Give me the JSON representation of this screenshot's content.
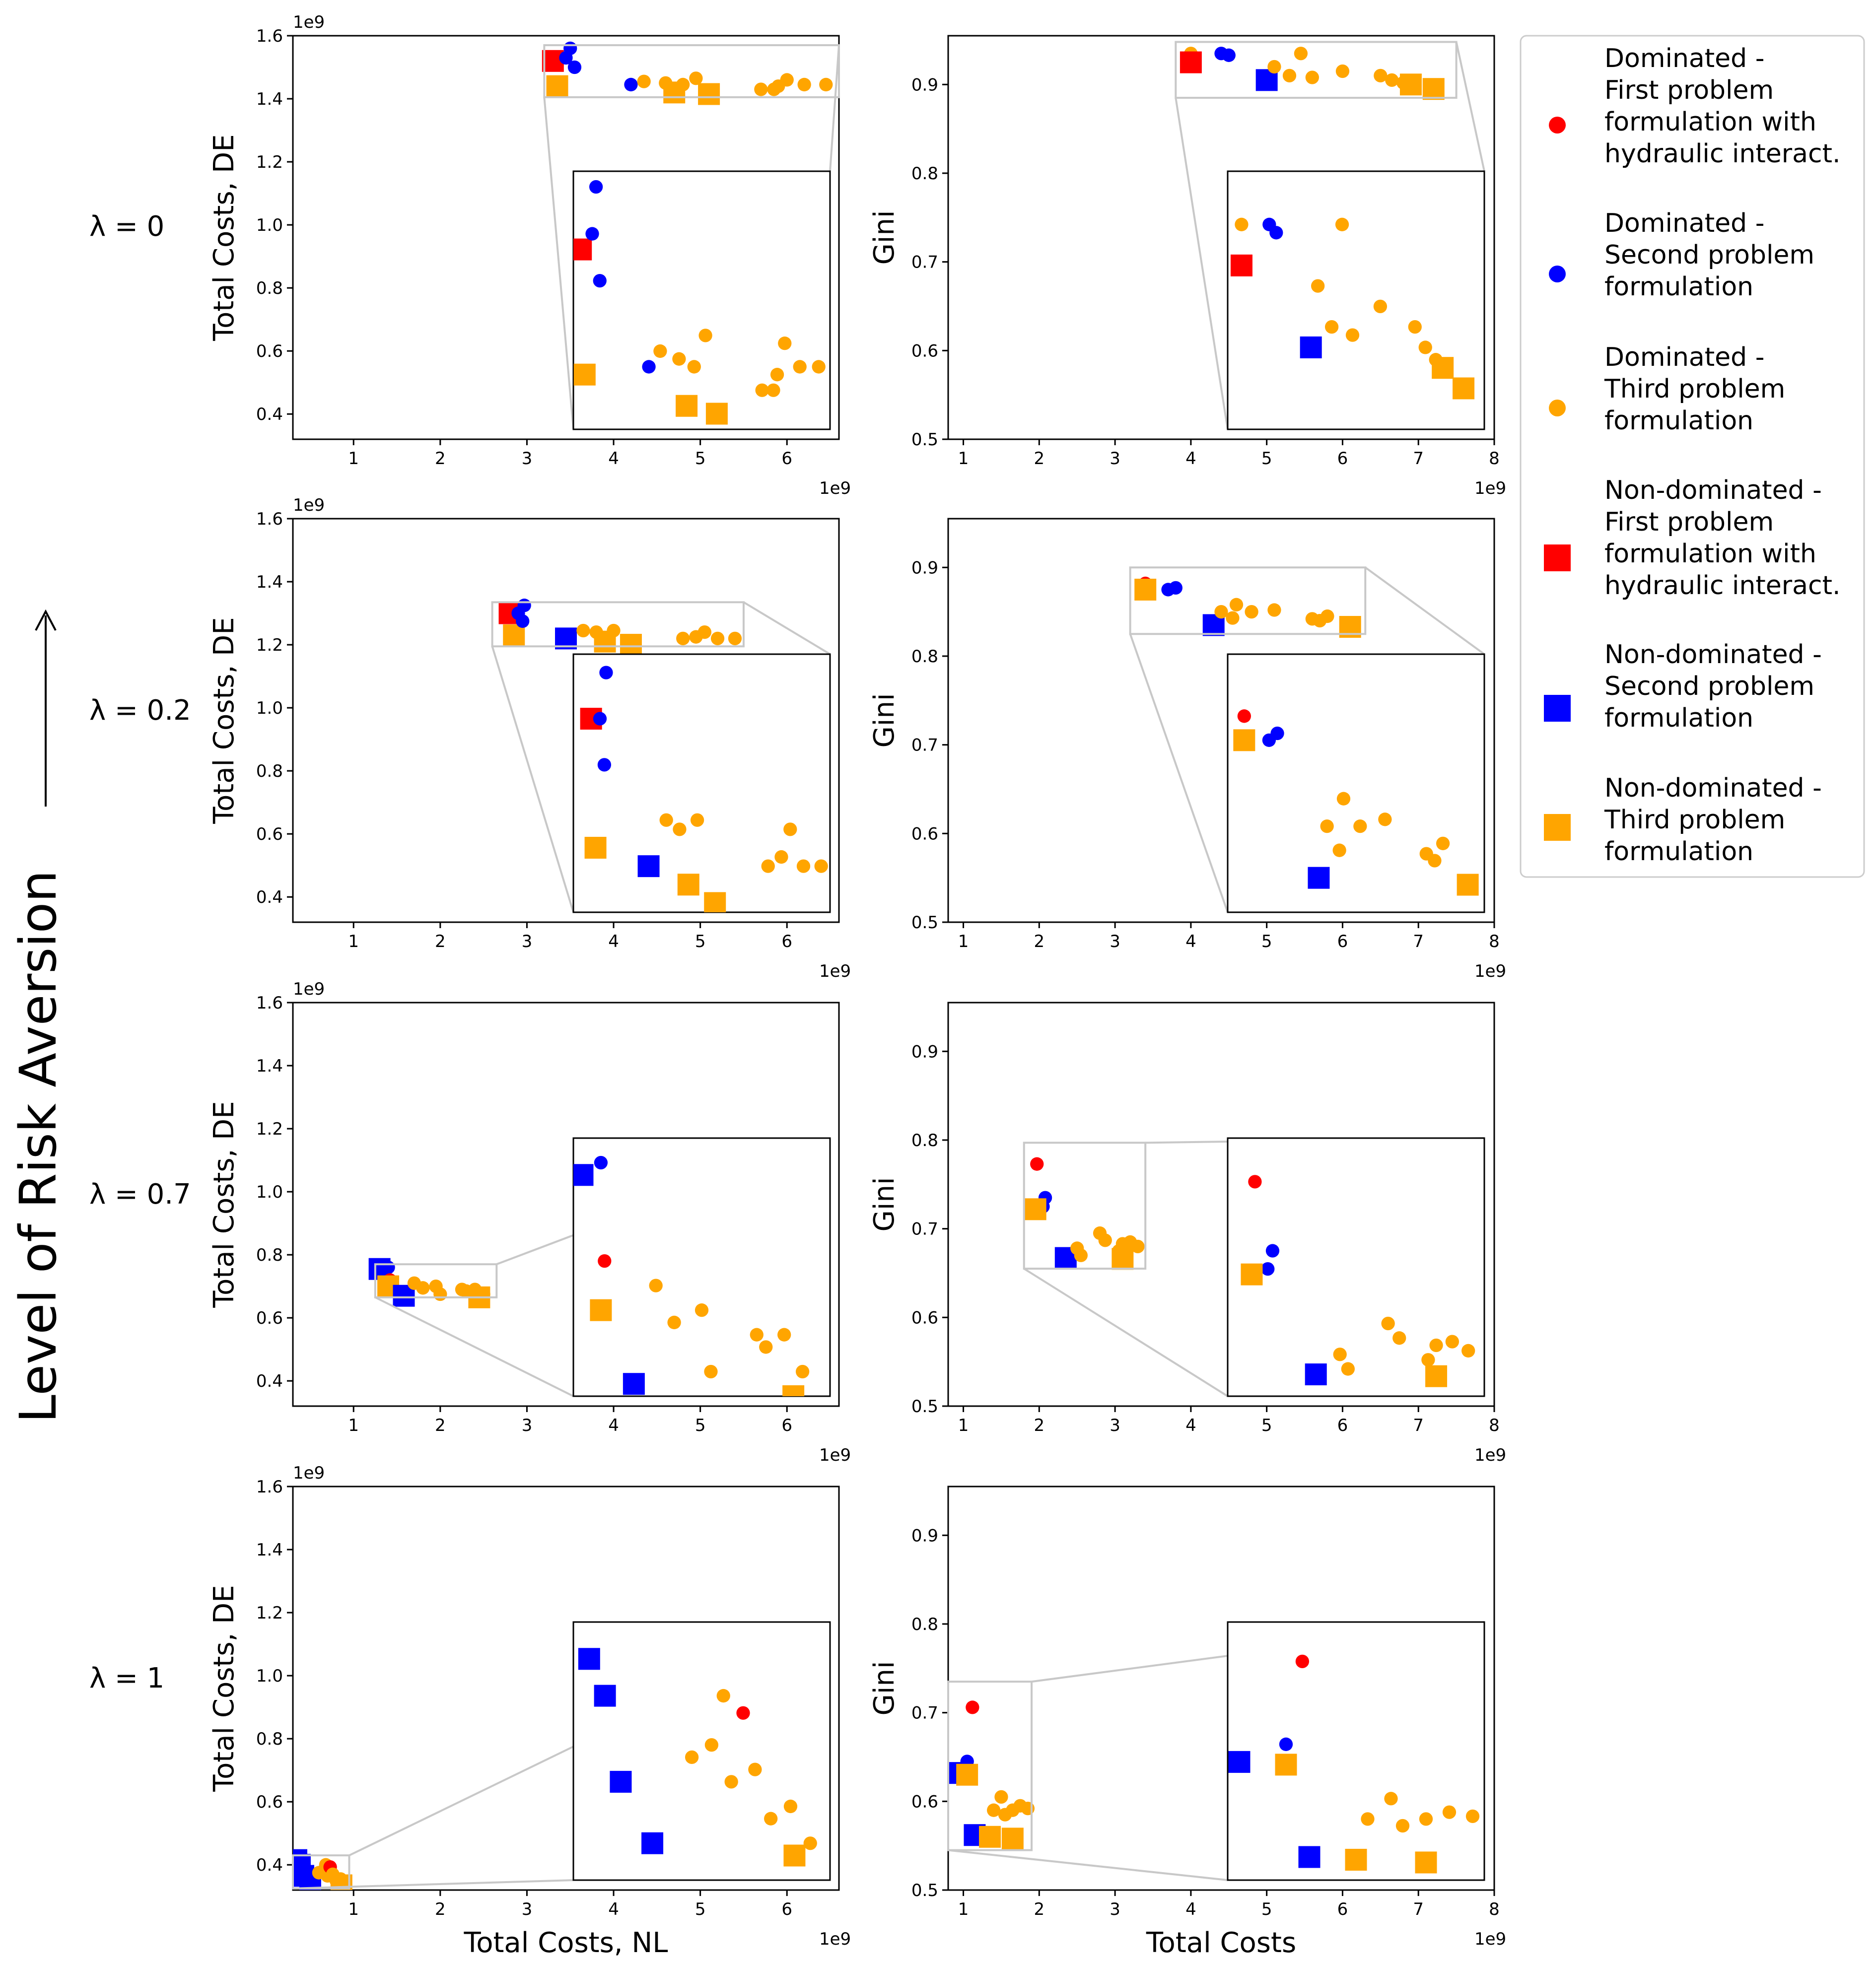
{
  "figure": {
    "row_axis_label": "Level of Risk Aversion",
    "row_labels": [
      "λ = 0",
      "λ = 0.2",
      "λ = 0.7",
      "λ = 1"
    ],
    "left_xlabel": "Total Costs, NL",
    "left_ylabel": "Total Costs, DE",
    "right_xlabel": "Total Costs",
    "right_ylabel": "Gini",
    "offset_label": "1e9",
    "left_xticks": [
      "1",
      "2",
      "3",
      "4",
      "5",
      "6"
    ],
    "left_yticks": [
      "0.4",
      "0.6",
      "0.8",
      "1.0",
      "1.2",
      "1.4",
      "1.6"
    ],
    "right_xticks": [
      "1",
      "2",
      "3",
      "4",
      "5",
      "6",
      "7",
      "8"
    ],
    "right_yticks": [
      "0.5",
      "0.6",
      "0.7",
      "0.8",
      "0.9"
    ]
  },
  "legend": {
    "position": "top-right",
    "entries": [
      {
        "label": "Dominated - First problem formulation with hydraulic interact.",
        "lines": [
          "Dominated -",
          "First problem",
          "formulation with",
          "hydraulic interact."
        ],
        "marker": "circle",
        "color": "#ff0000"
      },
      {
        "label": "Dominated - Second problem formulation",
        "lines": [
          "Dominated -",
          "Second problem",
          "formulation"
        ],
        "marker": "circle",
        "color": "#0000ff"
      },
      {
        "label": "Dominated - Third problem formulation",
        "lines": [
          "Dominated -",
          "Third problem",
          "formulation"
        ],
        "marker": "circle",
        "color": "#ffa500"
      },
      {
        "label": "Non-dominated - First problem formulation with hydraulic interact.",
        "lines": [
          "Non-dominated -",
          "First problem",
          "formulation with",
          "hydraulic interact."
        ],
        "marker": "square",
        "color": "#ff0000"
      },
      {
        "label": "Non-dominated - Second problem formulation",
        "lines": [
          "Non-dominated -",
          "Second problem",
          "formulation"
        ],
        "marker": "square",
        "color": "#0000ff"
      },
      {
        "label": "Non-dominated - Third problem formulation",
        "lines": [
          "Non-dominated -",
          "Third problem",
          "formulation"
        ],
        "marker": "square",
        "color": "#ffa500"
      }
    ]
  },
  "chart_data": [
    {
      "type": "scatter",
      "row": 0,
      "col": 0,
      "title": "λ = 0",
      "xlabel": "",
      "ylabel": "Total Costs, DE",
      "xlim": [
        0.3,
        6.6
      ],
      "ylim": [
        0.32,
        1.6
      ],
      "unit": "1e9",
      "inset_xlim": [
        3.2,
        6.6
      ],
      "inset_ylim": [
        1.405,
        1.57
      ],
      "points": [
        {
          "x": 3.3,
          "y": 1.52,
          "cat": "nd1"
        },
        {
          "x": 3.35,
          "y": 1.44,
          "cat": "nd3"
        },
        {
          "x": 3.45,
          "y": 1.53,
          "cat": "d2"
        },
        {
          "x": 3.5,
          "y": 1.56,
          "cat": "d2"
        },
        {
          "x": 3.55,
          "y": 1.5,
          "cat": "d2"
        },
        {
          "x": 4.2,
          "y": 1.445,
          "cat": "d2"
        },
        {
          "x": 4.35,
          "y": 1.455,
          "cat": "d3"
        },
        {
          "x": 4.6,
          "y": 1.45,
          "cat": "d3"
        },
        {
          "x": 4.8,
          "y": 1.445,
          "cat": "d3"
        },
        {
          "x": 4.95,
          "y": 1.465,
          "cat": "d3"
        },
        {
          "x": 4.7,
          "y": 1.42,
          "cat": "nd3"
        },
        {
          "x": 5.1,
          "y": 1.415,
          "cat": "nd3"
        },
        {
          "x": 5.7,
          "y": 1.43,
          "cat": "d3"
        },
        {
          "x": 5.85,
          "y": 1.43,
          "cat": "d3"
        },
        {
          "x": 5.9,
          "y": 1.44,
          "cat": "d3"
        },
        {
          "x": 6.0,
          "y": 1.46,
          "cat": "d3"
        },
        {
          "x": 6.2,
          "y": 1.445,
          "cat": "d3"
        },
        {
          "x": 6.45,
          "y": 1.445,
          "cat": "d3"
        }
      ]
    },
    {
      "type": "scatter",
      "row": 0,
      "col": 1,
      "title": "λ = 0",
      "xlabel": "",
      "ylabel": "Gini",
      "xlim": [
        0.8,
        8.0
      ],
      "ylim": [
        0.5,
        0.955
      ],
      "unit": "1e9",
      "inset_xlim": [
        3.8,
        7.5
      ],
      "inset_ylim": [
        0.885,
        0.948
      ],
      "points": [
        {
          "x": 4.0,
          "y": 0.935,
          "cat": "d3"
        },
        {
          "x": 4.0,
          "y": 0.925,
          "cat": "nd1"
        },
        {
          "x": 4.4,
          "y": 0.935,
          "cat": "d2"
        },
        {
          "x": 4.5,
          "y": 0.933,
          "cat": "d2"
        },
        {
          "x": 5.0,
          "y": 0.905,
          "cat": "nd2"
        },
        {
          "x": 5.1,
          "y": 0.92,
          "cat": "d3"
        },
        {
          "x": 5.3,
          "y": 0.91,
          "cat": "d3"
        },
        {
          "x": 5.45,
          "y": 0.935,
          "cat": "d3"
        },
        {
          "x": 5.6,
          "y": 0.908,
          "cat": "d3"
        },
        {
          "x": 6.0,
          "y": 0.915,
          "cat": "d3"
        },
        {
          "x": 6.5,
          "y": 0.91,
          "cat": "d3"
        },
        {
          "x": 6.65,
          "y": 0.905,
          "cat": "d3"
        },
        {
          "x": 6.8,
          "y": 0.902,
          "cat": "d3"
        },
        {
          "x": 6.9,
          "y": 0.9,
          "cat": "nd3"
        },
        {
          "x": 7.2,
          "y": 0.895,
          "cat": "nd3"
        }
      ]
    },
    {
      "type": "scatter",
      "row": 1,
      "col": 0,
      "title": "λ = 0.2",
      "xlabel": "",
      "ylabel": "Total Costs, DE",
      "xlim": [
        0.3,
        6.6
      ],
      "ylim": [
        0.32,
        1.6
      ],
      "unit": "1e9",
      "inset_xlim": [
        2.6,
        5.5
      ],
      "inset_ylim": [
        1.195,
        1.335
      ],
      "points": [
        {
          "x": 2.8,
          "y": 1.3,
          "cat": "nd1"
        },
        {
          "x": 2.85,
          "y": 1.23,
          "cat": "nd3"
        },
        {
          "x": 2.9,
          "y": 1.3,
          "cat": "d2"
        },
        {
          "x": 2.95,
          "y": 1.275,
          "cat": "d2"
        },
        {
          "x": 2.97,
          "y": 1.325,
          "cat": "d2"
        },
        {
          "x": 3.45,
          "y": 1.22,
          "cat": "nd2"
        },
        {
          "x": 3.65,
          "y": 1.245,
          "cat": "d3"
        },
        {
          "x": 3.8,
          "y": 1.24,
          "cat": "d3"
        },
        {
          "x": 4.0,
          "y": 1.245,
          "cat": "d3"
        },
        {
          "x": 3.9,
          "y": 1.21,
          "cat": "nd3"
        },
        {
          "x": 4.2,
          "y": 1.2,
          "cat": "nd3"
        },
        {
          "x": 4.8,
          "y": 1.22,
          "cat": "d3"
        },
        {
          "x": 4.95,
          "y": 1.225,
          "cat": "d3"
        },
        {
          "x": 5.05,
          "y": 1.24,
          "cat": "d3"
        },
        {
          "x": 5.2,
          "y": 1.22,
          "cat": "d3"
        },
        {
          "x": 5.4,
          "y": 1.22,
          "cat": "d3"
        }
      ]
    },
    {
      "type": "scatter",
      "row": 1,
      "col": 1,
      "title": "λ = 0.2",
      "xlabel": "",
      "ylabel": "Gini",
      "xlim": [
        0.8,
        8.0
      ],
      "ylim": [
        0.5,
        0.955
      ],
      "unit": "1e9",
      "inset_xlim": [
        3.2,
        6.3
      ],
      "inset_ylim": [
        0.825,
        0.9
      ],
      "points": [
        {
          "x": 3.4,
          "y": 0.882,
          "cat": "d1"
        },
        {
          "x": 3.4,
          "y": 0.875,
          "cat": "nd3"
        },
        {
          "x": 3.7,
          "y": 0.875,
          "cat": "d2"
        },
        {
          "x": 3.8,
          "y": 0.877,
          "cat": "d2"
        },
        {
          "x": 4.3,
          "y": 0.835,
          "cat": "nd2"
        },
        {
          "x": 4.4,
          "y": 0.85,
          "cat": "d3"
        },
        {
          "x": 4.55,
          "y": 0.843,
          "cat": "d3"
        },
        {
          "x": 4.6,
          "y": 0.858,
          "cat": "d3"
        },
        {
          "x": 4.8,
          "y": 0.85,
          "cat": "d3"
        },
        {
          "x": 5.1,
          "y": 0.852,
          "cat": "d3"
        },
        {
          "x": 5.6,
          "y": 0.842,
          "cat": "d3"
        },
        {
          "x": 5.7,
          "y": 0.84,
          "cat": "d3"
        },
        {
          "x": 5.8,
          "y": 0.845,
          "cat": "d3"
        },
        {
          "x": 6.1,
          "y": 0.833,
          "cat": "nd3"
        }
      ]
    },
    {
      "type": "scatter",
      "row": 2,
      "col": 0,
      "title": "λ = 0.7",
      "xlabel": "",
      "ylabel": "Total Costs, DE",
      "xlim": [
        0.3,
        6.6
      ],
      "ylim": [
        0.32,
        1.6
      ],
      "unit": "1e9",
      "inset_xlim": [
        1.25,
        2.65
      ],
      "inset_ylim": [
        0.665,
        0.77
      ],
      "points": [
        {
          "x": 1.3,
          "y": 0.755,
          "cat": "nd2"
        },
        {
          "x": 1.4,
          "y": 0.76,
          "cat": "d2"
        },
        {
          "x": 1.42,
          "y": 0.72,
          "cat": "d1"
        },
        {
          "x": 1.4,
          "y": 0.7,
          "cat": "nd3"
        },
        {
          "x": 1.58,
          "y": 0.67,
          "cat": "nd2"
        },
        {
          "x": 1.7,
          "y": 0.71,
          "cat": "d3"
        },
        {
          "x": 1.8,
          "y": 0.695,
          "cat": "d3"
        },
        {
          "x": 1.95,
          "y": 0.7,
          "cat": "d3"
        },
        {
          "x": 2.0,
          "y": 0.675,
          "cat": "d3"
        },
        {
          "x": 2.25,
          "y": 0.69,
          "cat": "d3"
        },
        {
          "x": 2.3,
          "y": 0.685,
          "cat": "d3"
        },
        {
          "x": 2.4,
          "y": 0.69,
          "cat": "d3"
        },
        {
          "x": 2.5,
          "y": 0.675,
          "cat": "d3"
        },
        {
          "x": 2.45,
          "y": 0.665,
          "cat": "nd3"
        }
      ]
    },
    {
      "type": "scatter",
      "row": 2,
      "col": 1,
      "title": "λ = 0.7",
      "xlabel": "",
      "ylabel": "Gini",
      "xlim": [
        0.8,
        8.0
      ],
      "ylim": [
        0.5,
        0.955
      ],
      "unit": "1e9",
      "inset_xlim": [
        1.8,
        3.4
      ],
      "inset_ylim": [
        0.655,
        0.797
      ],
      "points": [
        {
          "x": 1.97,
          "y": 0.773,
          "cat": "d1"
        },
        {
          "x": 2.05,
          "y": 0.725,
          "cat": "d2"
        },
        {
          "x": 2.08,
          "y": 0.735,
          "cat": "d2"
        },
        {
          "x": 1.95,
          "y": 0.722,
          "cat": "nd3"
        },
        {
          "x": 2.35,
          "y": 0.667,
          "cat": "nd2"
        },
        {
          "x": 2.5,
          "y": 0.678,
          "cat": "d3"
        },
        {
          "x": 2.55,
          "y": 0.67,
          "cat": "d3"
        },
        {
          "x": 2.8,
          "y": 0.695,
          "cat": "d3"
        },
        {
          "x": 2.87,
          "y": 0.687,
          "cat": "d3"
        },
        {
          "x": 3.05,
          "y": 0.675,
          "cat": "d3"
        },
        {
          "x": 3.1,
          "y": 0.683,
          "cat": "d3"
        },
        {
          "x": 3.2,
          "y": 0.685,
          "cat": "d3"
        },
        {
          "x": 3.3,
          "y": 0.68,
          "cat": "d3"
        },
        {
          "x": 3.1,
          "y": 0.666,
          "cat": "nd3"
        }
      ]
    },
    {
      "type": "scatter",
      "row": 3,
      "col": 0,
      "title": "λ = 1",
      "xlabel": "Total Costs, NL",
      "ylabel": "Total Costs, DE",
      "xlim": [
        0.3,
        6.6
      ],
      "ylim": [
        0.32,
        1.6
      ],
      "unit": "1e9",
      "inset_xlim": [
        0.3,
        0.95
      ],
      "inset_ylim": [
        0.325,
        0.43
      ],
      "points": [
        {
          "x": 0.34,
          "y": 0.415,
          "cat": "nd2"
        },
        {
          "x": 0.38,
          "y": 0.4,
          "cat": "nd2"
        },
        {
          "x": 0.42,
          "y": 0.365,
          "cat": "nd2"
        },
        {
          "x": 0.5,
          "y": 0.34,
          "cat": "nd2"
        },
        {
          "x": 0.6,
          "y": 0.375,
          "cat": "d3"
        },
        {
          "x": 0.65,
          "y": 0.38,
          "cat": "d3"
        },
        {
          "x": 0.68,
          "y": 0.4,
          "cat": "d3"
        },
        {
          "x": 0.7,
          "y": 0.365,
          "cat": "d3"
        },
        {
          "x": 0.73,
          "y": 0.393,
          "cat": "d1"
        },
        {
          "x": 0.76,
          "y": 0.37,
          "cat": "d3"
        },
        {
          "x": 0.8,
          "y": 0.35,
          "cat": "d3"
        },
        {
          "x": 0.85,
          "y": 0.355,
          "cat": "d3"
        },
        {
          "x": 0.9,
          "y": 0.34,
          "cat": "d3"
        },
        {
          "x": 0.86,
          "y": 0.335,
          "cat": "nd3"
        }
      ]
    },
    {
      "type": "scatter",
      "row": 3,
      "col": 1,
      "title": "λ = 1",
      "xlabel": "Total Costs",
      "ylabel": "Gini",
      "xlim": [
        0.8,
        8.0
      ],
      "ylim": [
        0.5,
        0.955
      ],
      "unit": "1e9",
      "inset_xlim": [
        0.8,
        1.9
      ],
      "inset_ylim": [
        0.545,
        0.735
      ],
      "points": [
        {
          "x": 1.12,
          "y": 0.706,
          "cat": "d1"
        },
        {
          "x": 1.05,
          "y": 0.645,
          "cat": "d2"
        },
        {
          "x": 0.85,
          "y": 0.632,
          "cat": "nd2"
        },
        {
          "x": 1.05,
          "y": 0.63,
          "cat": "nd3"
        },
        {
          "x": 1.15,
          "y": 0.562,
          "cat": "nd2"
        },
        {
          "x": 1.4,
          "y": 0.59,
          "cat": "d3"
        },
        {
          "x": 1.5,
          "y": 0.605,
          "cat": "d3"
        },
        {
          "x": 1.55,
          "y": 0.585,
          "cat": "d3"
        },
        {
          "x": 1.65,
          "y": 0.59,
          "cat": "d3"
        },
        {
          "x": 1.75,
          "y": 0.595,
          "cat": "d3"
        },
        {
          "x": 1.85,
          "y": 0.592,
          "cat": "d3"
        },
        {
          "x": 1.35,
          "y": 0.56,
          "cat": "nd3"
        },
        {
          "x": 1.65,
          "y": 0.558,
          "cat": "nd3"
        }
      ]
    }
  ]
}
